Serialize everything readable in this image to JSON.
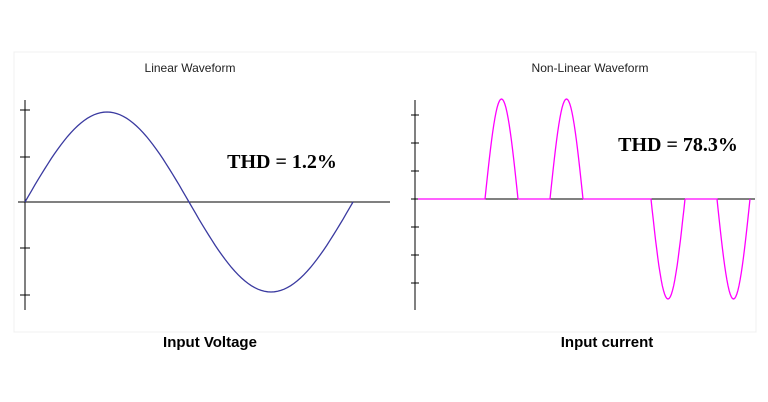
{
  "left": {
    "title": "Linear Waveform",
    "thd": "THD = 1.2%",
    "caption": "Input Voltage"
  },
  "right": {
    "title": "Non-Linear Waveform",
    "thd": "THD = 78.3%",
    "caption": "Input current"
  }
}
